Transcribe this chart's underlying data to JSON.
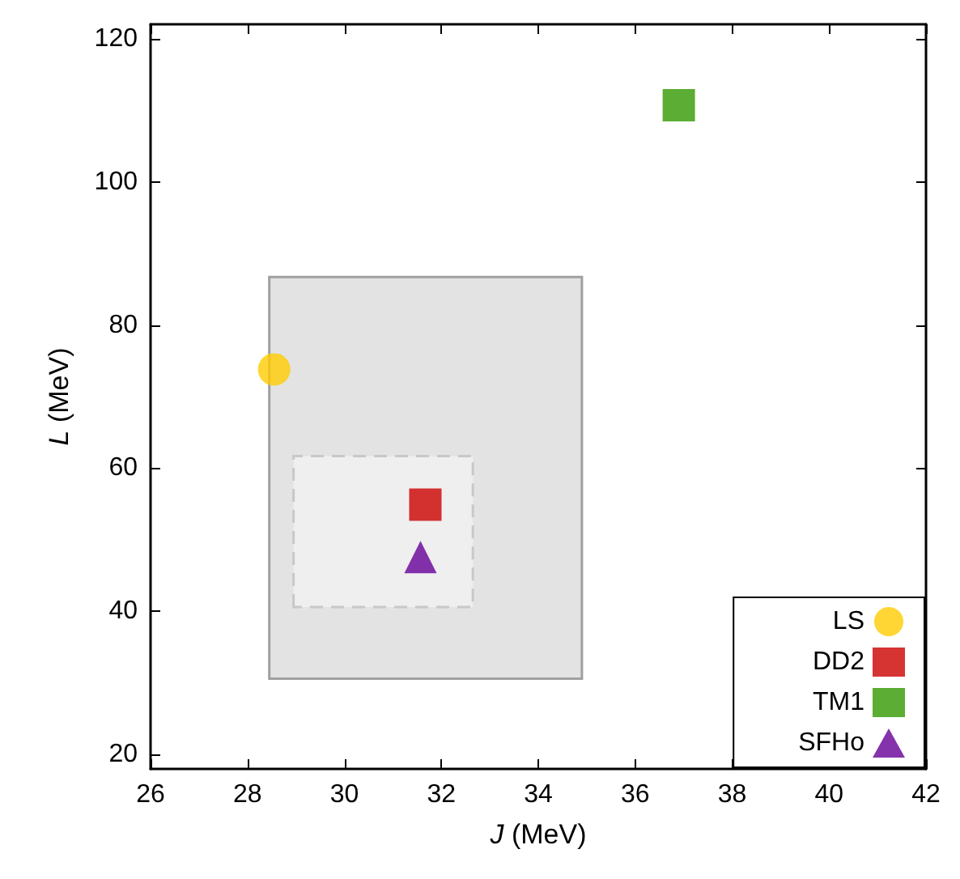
{
  "chart_data": {
    "type": "scatter",
    "xlabel": "J (MeV)",
    "ylabel": "L (MeV)",
    "xlim": [
      26,
      42
    ],
    "xticks": [
      26,
      28,
      30,
      32,
      34,
      36,
      38,
      40,
      42
    ],
    "ylim": [
      18,
      122
    ],
    "yticks": [
      20,
      40,
      60,
      80,
      100,
      120
    ],
    "grid": false,
    "legend": "bottom right",
    "series": [
      {
        "type": "area",
        "color": "#e3e3e3",
        "line_style": "solid",
        "x": [
          28.45,
          28.45,
          34.9,
          34.9
        ],
        "values": [
          30.6,
          86.7,
          86.7,
          30.6
        ]
      },
      {
        "type": "area",
        "color": "#efefef",
        "line_style": "dashed",
        "x": [
          28.95,
          28.95,
          32.65,
          32.65
        ],
        "values": [
          40.6,
          61.7,
          61.7,
          40.6
        ]
      },
      {
        "name": "LS",
        "color": "#ffcc00",
        "marker": "circle",
        "x": [
          28.55
        ],
        "values": [
          73.8
        ]
      },
      {
        "name": "DD2",
        "color": "#cc0000",
        "marker": "square",
        "x": [
          31.67
        ],
        "values": [
          54.9
        ]
      },
      {
        "name": "TM1",
        "color": "#339900",
        "marker": "square",
        "x": [
          36.9
        ],
        "values": [
          110.7
        ]
      },
      {
        "name": "SFHo",
        "color": "#660099",
        "marker": "triangle",
        "x": [
          31.57
        ],
        "values": [
          47.6
        ]
      }
    ]
  }
}
